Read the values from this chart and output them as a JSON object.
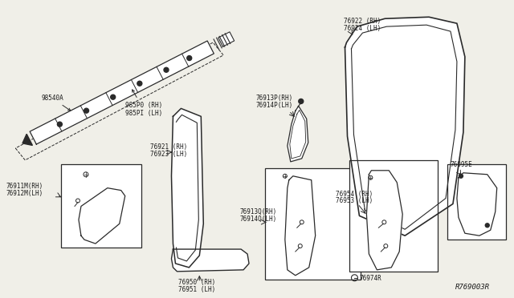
{
  "bg_color": "#f0efe8",
  "line_color": "#2a2a2a",
  "ref_code": "R769003R",
  "font_size": 5.5,
  "label_color": "#1a1a1a",
  "parts": [
    {
      "id": "98540A",
      "label": "98540A"
    },
    {
      "id": "985P0",
      "label": "985P0 (RH)\n985PI (LH)"
    },
    {
      "id": "76921",
      "label": "76921 (RH)\n76923 (LH)"
    },
    {
      "id": "76922",
      "label": "76922 (RH)\n76924 (LH)"
    },
    {
      "id": "76913P",
      "label": "76913P(RH)\n76914P(LH)"
    },
    {
      "id": "76911M",
      "label": "76911M(RH)\n76912M(LH)"
    },
    {
      "id": "76913Q",
      "label": "76913Q(RH)\n76914Q(LH)"
    },
    {
      "id": "76950",
      "label": "76950 (RH)\n76951 (LH)"
    },
    {
      "id": "76954",
      "label": "76954 (RH)\n76953 (LH)"
    },
    {
      "id": "76974R",
      "label": "76974R"
    },
    {
      "id": "76095E",
      "label": "76095E"
    }
  ]
}
